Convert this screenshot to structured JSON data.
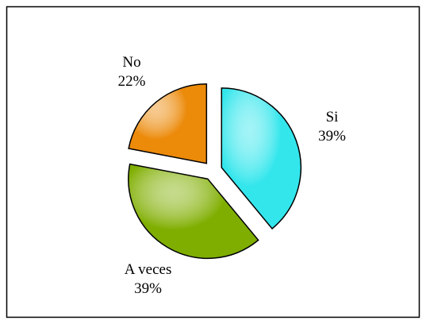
{
  "chart_data": {
    "type": "pie",
    "categories": [
      "Si",
      "A veces",
      "No"
    ],
    "values": [
      39,
      39,
      22
    ],
    "value_labels": [
      "39%",
      "39%",
      "22%"
    ],
    "colors": [
      "#33e6ec",
      "#7fae00",
      "#ec8a0a"
    ]
  }
}
